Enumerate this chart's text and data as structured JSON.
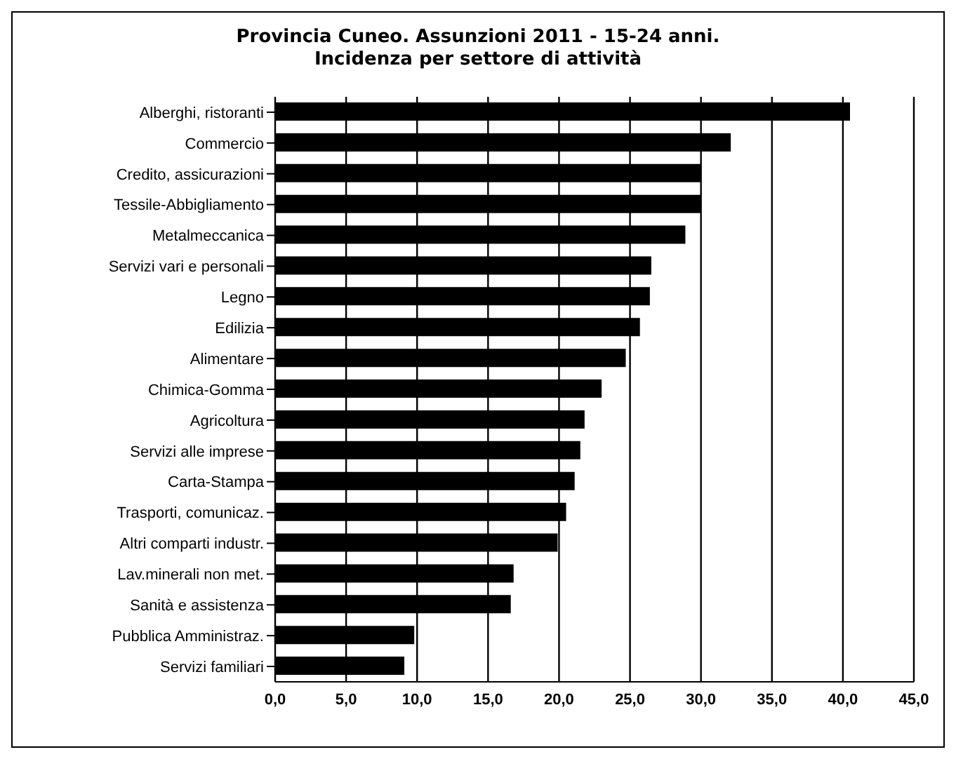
{
  "chart_data": {
    "type": "bar",
    "orientation": "horizontal",
    "title": "Provincia Cuneo. Assunzioni 2011 - 15-24 anni.\nIncidenza per settore di attività",
    "categories": [
      "Alberghi, ristoranti",
      "Commercio",
      "Credito, assicurazioni",
      "Tessile-Abbigliamento",
      "Metalmeccanica",
      "Servizi vari e personali",
      "Legno",
      "Edilizia",
      "Alimentare",
      "Chimica-Gomma",
      "Agricoltura",
      "Servizi alle imprese",
      "Carta-Stampa",
      "Trasporti, comunicaz.",
      "Altri comparti industr.",
      "Lav.minerali non met.",
      "Sanità e assistenza",
      "Pubblica Amministraz.",
      "Servizi familiari"
    ],
    "values": [
      40.5,
      32.1,
      30.0,
      30.0,
      28.9,
      26.5,
      26.4,
      25.7,
      24.7,
      23.0,
      21.8,
      21.5,
      21.1,
      20.5,
      19.9,
      16.8,
      16.6,
      9.8,
      9.1
    ],
    "color": "#000000",
    "xlim": [
      0,
      45
    ],
    "xticks": [
      {
        "value": 0,
        "label": "0,0"
      },
      {
        "value": 5,
        "label": "5,0"
      },
      {
        "value": 10,
        "label": "10,0"
      },
      {
        "value": 15,
        "label": "15,0"
      },
      {
        "value": 20,
        "label": "20,0"
      },
      {
        "value": 25,
        "label": "25,0"
      },
      {
        "value": 30,
        "label": "30,0"
      },
      {
        "value": 35,
        "label": "35,0"
      },
      {
        "value": 40,
        "label": "40,0"
      },
      {
        "value": 45,
        "label": "45,0"
      }
    ],
    "grid": "x",
    "legend": false
  }
}
